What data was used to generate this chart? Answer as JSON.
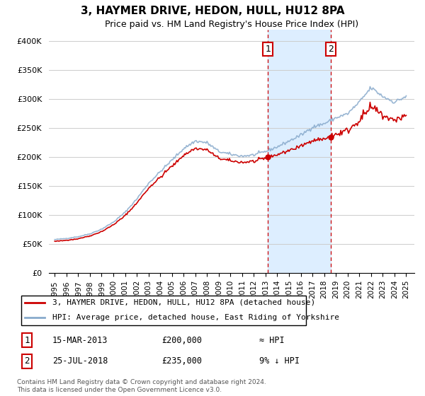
{
  "title": "3, HAYMER DRIVE, HEDON, HULL, HU12 8PA",
  "subtitle": "Price paid vs. HM Land Registry's House Price Index (HPI)",
  "legend_line1": "3, HAYMER DRIVE, HEDON, HULL, HU12 8PA (detached house)",
  "legend_line2": "HPI: Average price, detached house, East Riding of Yorkshire",
  "annotation1_label": "1",
  "annotation1_date": "15-MAR-2013",
  "annotation1_price": "£200,000",
  "annotation1_note": "≈ HPI",
  "annotation2_label": "2",
  "annotation2_date": "25-JUL-2018",
  "annotation2_price": "£235,000",
  "annotation2_note": "9% ↓ HPI",
  "footer": "Contains HM Land Registry data © Crown copyright and database right 2024.\nThis data is licensed under the Open Government Licence v3.0.",
  "price_color": "#cc0000",
  "hpi_color": "#88aacc",
  "highlight_color": "#ddeeff",
  "vline_color": "#cc0000",
  "annotation_box_color": "#cc0000",
  "ylim": [
    0,
    420000
  ],
  "yticks": [
    0,
    50000,
    100000,
    150000,
    200000,
    250000,
    300000,
    350000,
    400000
  ],
  "marker1_t": 2013.21,
  "marker1_v": 200000,
  "marker2_t": 2018.56,
  "marker2_v": 235000,
  "hpi_seed": 42,
  "hpi_base_years": [
    1995,
    1996,
    1997,
    1998,
    1999,
    2000,
    2001,
    2002,
    2003,
    2004,
    2005,
    2006,
    2007,
    2008,
    2009,
    2010,
    2011,
    2012,
    2013,
    2014,
    2015,
    2016,
    2017,
    2018,
    2019,
    2020,
    2021,
    2022,
    2023,
    2024,
    2025
  ],
  "hpi_base_vals": [
    58000,
    60000,
    63000,
    68000,
    76000,
    88000,
    105000,
    128000,
    155000,
    175000,
    195000,
    215000,
    228000,
    225000,
    210000,
    205000,
    202000,
    204000,
    210000,
    218000,
    228000,
    238000,
    252000,
    258000,
    268000,
    275000,
    295000,
    320000,
    305000,
    295000,
    305000
  ],
  "price_scale_factor_before2013": 1.0,
  "price_scale_factor_after2013": 0.98
}
